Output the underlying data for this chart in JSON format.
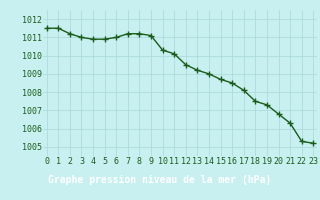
{
  "x": [
    0,
    1,
    2,
    3,
    4,
    5,
    6,
    7,
    8,
    9,
    10,
    11,
    12,
    13,
    14,
    15,
    16,
    17,
    18,
    19,
    20,
    21,
    22,
    23
  ],
  "y": [
    1011.5,
    1011.5,
    1011.2,
    1011.0,
    1010.9,
    1010.9,
    1011.0,
    1011.2,
    1011.2,
    1011.1,
    1010.3,
    1010.1,
    1009.5,
    1009.2,
    1009.0,
    1008.7,
    1008.5,
    1008.1,
    1007.5,
    1007.3,
    1006.8,
    1006.3,
    1005.3,
    1005.2
  ],
  "line_color": "#1a5c1a",
  "marker": "+",
  "markersize": 4,
  "linewidth": 1.0,
  "bg_color": "#c8f0f0",
  "grid_color": "#a8d8d8",
  "bottom_bg": "#2d7a2d",
  "xlabel": "Graphe pression niveau de la mer (hPa)",
  "xlabel_fontsize": 7,
  "xlabel_fontweight": "bold",
  "xlabel_color": "#ffffff",
  "tick_color": "#1a5c1a",
  "tick_fontsize": 6,
  "ytick_labels": [
    "1005",
    "1006",
    "1007",
    "1008",
    "1009",
    "1010",
    "1011",
    "1012"
  ],
  "ylim": [
    1004.5,
    1012.5
  ],
  "yticks": [
    1005,
    1006,
    1007,
    1008,
    1009,
    1010,
    1011,
    1012
  ],
  "xticks": [
    0,
    1,
    2,
    3,
    4,
    5,
    6,
    7,
    8,
    9,
    10,
    11,
    12,
    13,
    14,
    15,
    16,
    17,
    18,
    19,
    20,
    21,
    22,
    23
  ],
  "xlim": [
    -0.3,
    23.3
  ],
  "bottom_bar_height": 0.22
}
